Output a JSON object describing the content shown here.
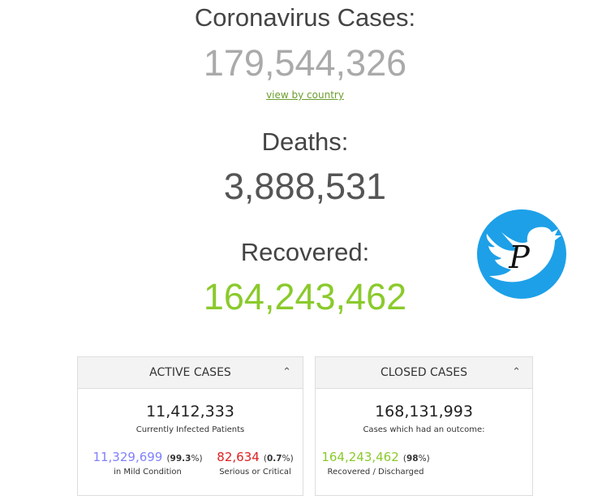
{
  "cases": {
    "label": "Coronavirus Cases:",
    "value": "179,544,326",
    "link": "view by country"
  },
  "deaths": {
    "label": "Deaths:",
    "value": "3,888,531"
  },
  "recovered": {
    "label": "Recovered:",
    "value": "164,243,462"
  },
  "logo": {
    "icon": "twitter-bird-icon",
    "letter": "P"
  },
  "active": {
    "title": "ACTIVE CASES",
    "total": "11,412,333",
    "total_label": "Currently Infected Patients",
    "mild": {
      "value": "11,329,699",
      "pct_open": "(",
      "pct": "99.3",
      "pct_close": "%)",
      "label": "in Mild Condition"
    },
    "serious": {
      "value": "82,634",
      "pct_open": "(",
      "pct": "0.7",
      "pct_close": "%)",
      "label": "Serious or Critical"
    }
  },
  "closed": {
    "title": "CLOSED CASES",
    "total": "168,131,993",
    "total_label": "Cases which had an outcome:",
    "recovered": {
      "value": "164,243,462",
      "pct_open": "(",
      "pct": "98",
      "pct_close": "%)",
      "label": "Recovered / Discharged"
    }
  },
  "colors": {
    "cases": "#aaaaaa",
    "deaths": "#555555",
    "recovered": "#8aca2b",
    "mild": "#8080ff",
    "serious": "#e02020",
    "twitter": "#1da0e8"
  }
}
